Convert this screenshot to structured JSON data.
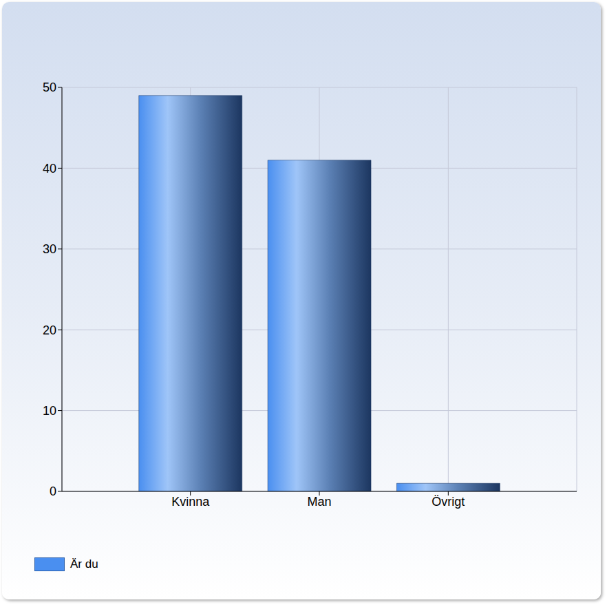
{
  "chart_data": {
    "type": "bar",
    "categories": [
      "Kvinna",
      "Man",
      "Övrigt"
    ],
    "series": [
      {
        "name": "Är du",
        "color": "#4a8ff0",
        "values": [
          49,
          41,
          1
        ]
      }
    ],
    "ylim": [
      0,
      50
    ],
    "yticks": [
      0,
      10,
      20,
      30,
      40,
      50
    ],
    "grid": true,
    "legend": "bottom-left"
  }
}
